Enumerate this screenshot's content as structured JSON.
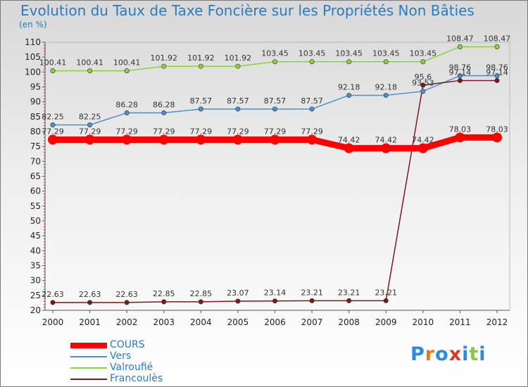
{
  "chart_data": {
    "type": "line",
    "title": "Evolution du Taux de Taxe Foncière sur les Propriétés Non Bâties",
    "subtitle": "(en %)",
    "xlabel": "",
    "ylabel": "",
    "ylim": [
      20,
      110
    ],
    "yticks": [
      20,
      25,
      30,
      35,
      40,
      45,
      50,
      55,
      60,
      65,
      70,
      75,
      80,
      85,
      90,
      95,
      100,
      105,
      110
    ],
    "categories": [
      "2000",
      "2001",
      "2002",
      "2003",
      "2004",
      "2005",
      "2006",
      "2007",
      "2008",
      "2009",
      "2010",
      "2011",
      "2012"
    ],
    "grid": false,
    "legend_position": "bottom-left",
    "series": [
      {
        "name": "COURS",
        "color": "#ff0000",
        "values": [
          77.29,
          77.29,
          77.29,
          77.29,
          77.29,
          77.29,
          77.29,
          77.29,
          74.42,
          74.42,
          74.42,
          78.03,
          78.03
        ],
        "labels": [
          "77.29",
          "77.29",
          "77.29",
          "77.29",
          "77.29",
          "77.29",
          "77.29",
          "77.29",
          "74.42",
          "74.42",
          "74.42",
          "78.03",
          "78.03"
        ]
      },
      {
        "name": "Vers",
        "color": "#4f8fc8",
        "values": [
          82.25,
          82.25,
          86.28,
          86.28,
          87.57,
          87.57,
          87.57,
          87.57,
          92.18,
          92.18,
          93.53,
          98.76,
          98.76
        ],
        "labels": [
          "82.25",
          "82.25",
          "86.28",
          "86.28",
          "87.57",
          "87.57",
          "87.57",
          "87.57",
          "92.18",
          "92.18",
          "93.53",
          "98.76",
          "98.76"
        ]
      },
      {
        "name": "Valroufié",
        "color": "#88d33a",
        "values": [
          100.41,
          100.41,
          100.41,
          101.92,
          101.92,
          101.92,
          103.45,
          103.45,
          103.45,
          103.45,
          103.45,
          108.47,
          108.47
        ],
        "labels": [
          "100.41",
          "100.41",
          "100.41",
          "101.92",
          "101.92",
          "101.92",
          "103.45",
          "103.45",
          "103.45",
          "103.45",
          "103.45",
          "108.47",
          "108.47"
        ]
      },
      {
        "name": "Francoulès",
        "color": "#7a1a1a",
        "values": [
          22.63,
          22.63,
          22.63,
          22.85,
          22.85,
          23.07,
          23.14,
          23.21,
          23.21,
          23.21,
          95.6,
          97.14,
          97.14
        ],
        "labels": [
          "22.63",
          "22.63",
          "22.63",
          "22.85",
          "22.85",
          "23.07",
          "23.14",
          "23.21",
          "23.21",
          "23.21",
          "95.6",
          "97.14",
          "97.14"
        ]
      }
    ]
  },
  "brand": {
    "text": "Proxiti",
    "letter_colors": [
      "#2b8be0",
      "#e07a2b",
      "#2b8be0",
      "#d63a2b",
      "#2b8be0",
      "#88c83a",
      "#2b8be0"
    ]
  }
}
